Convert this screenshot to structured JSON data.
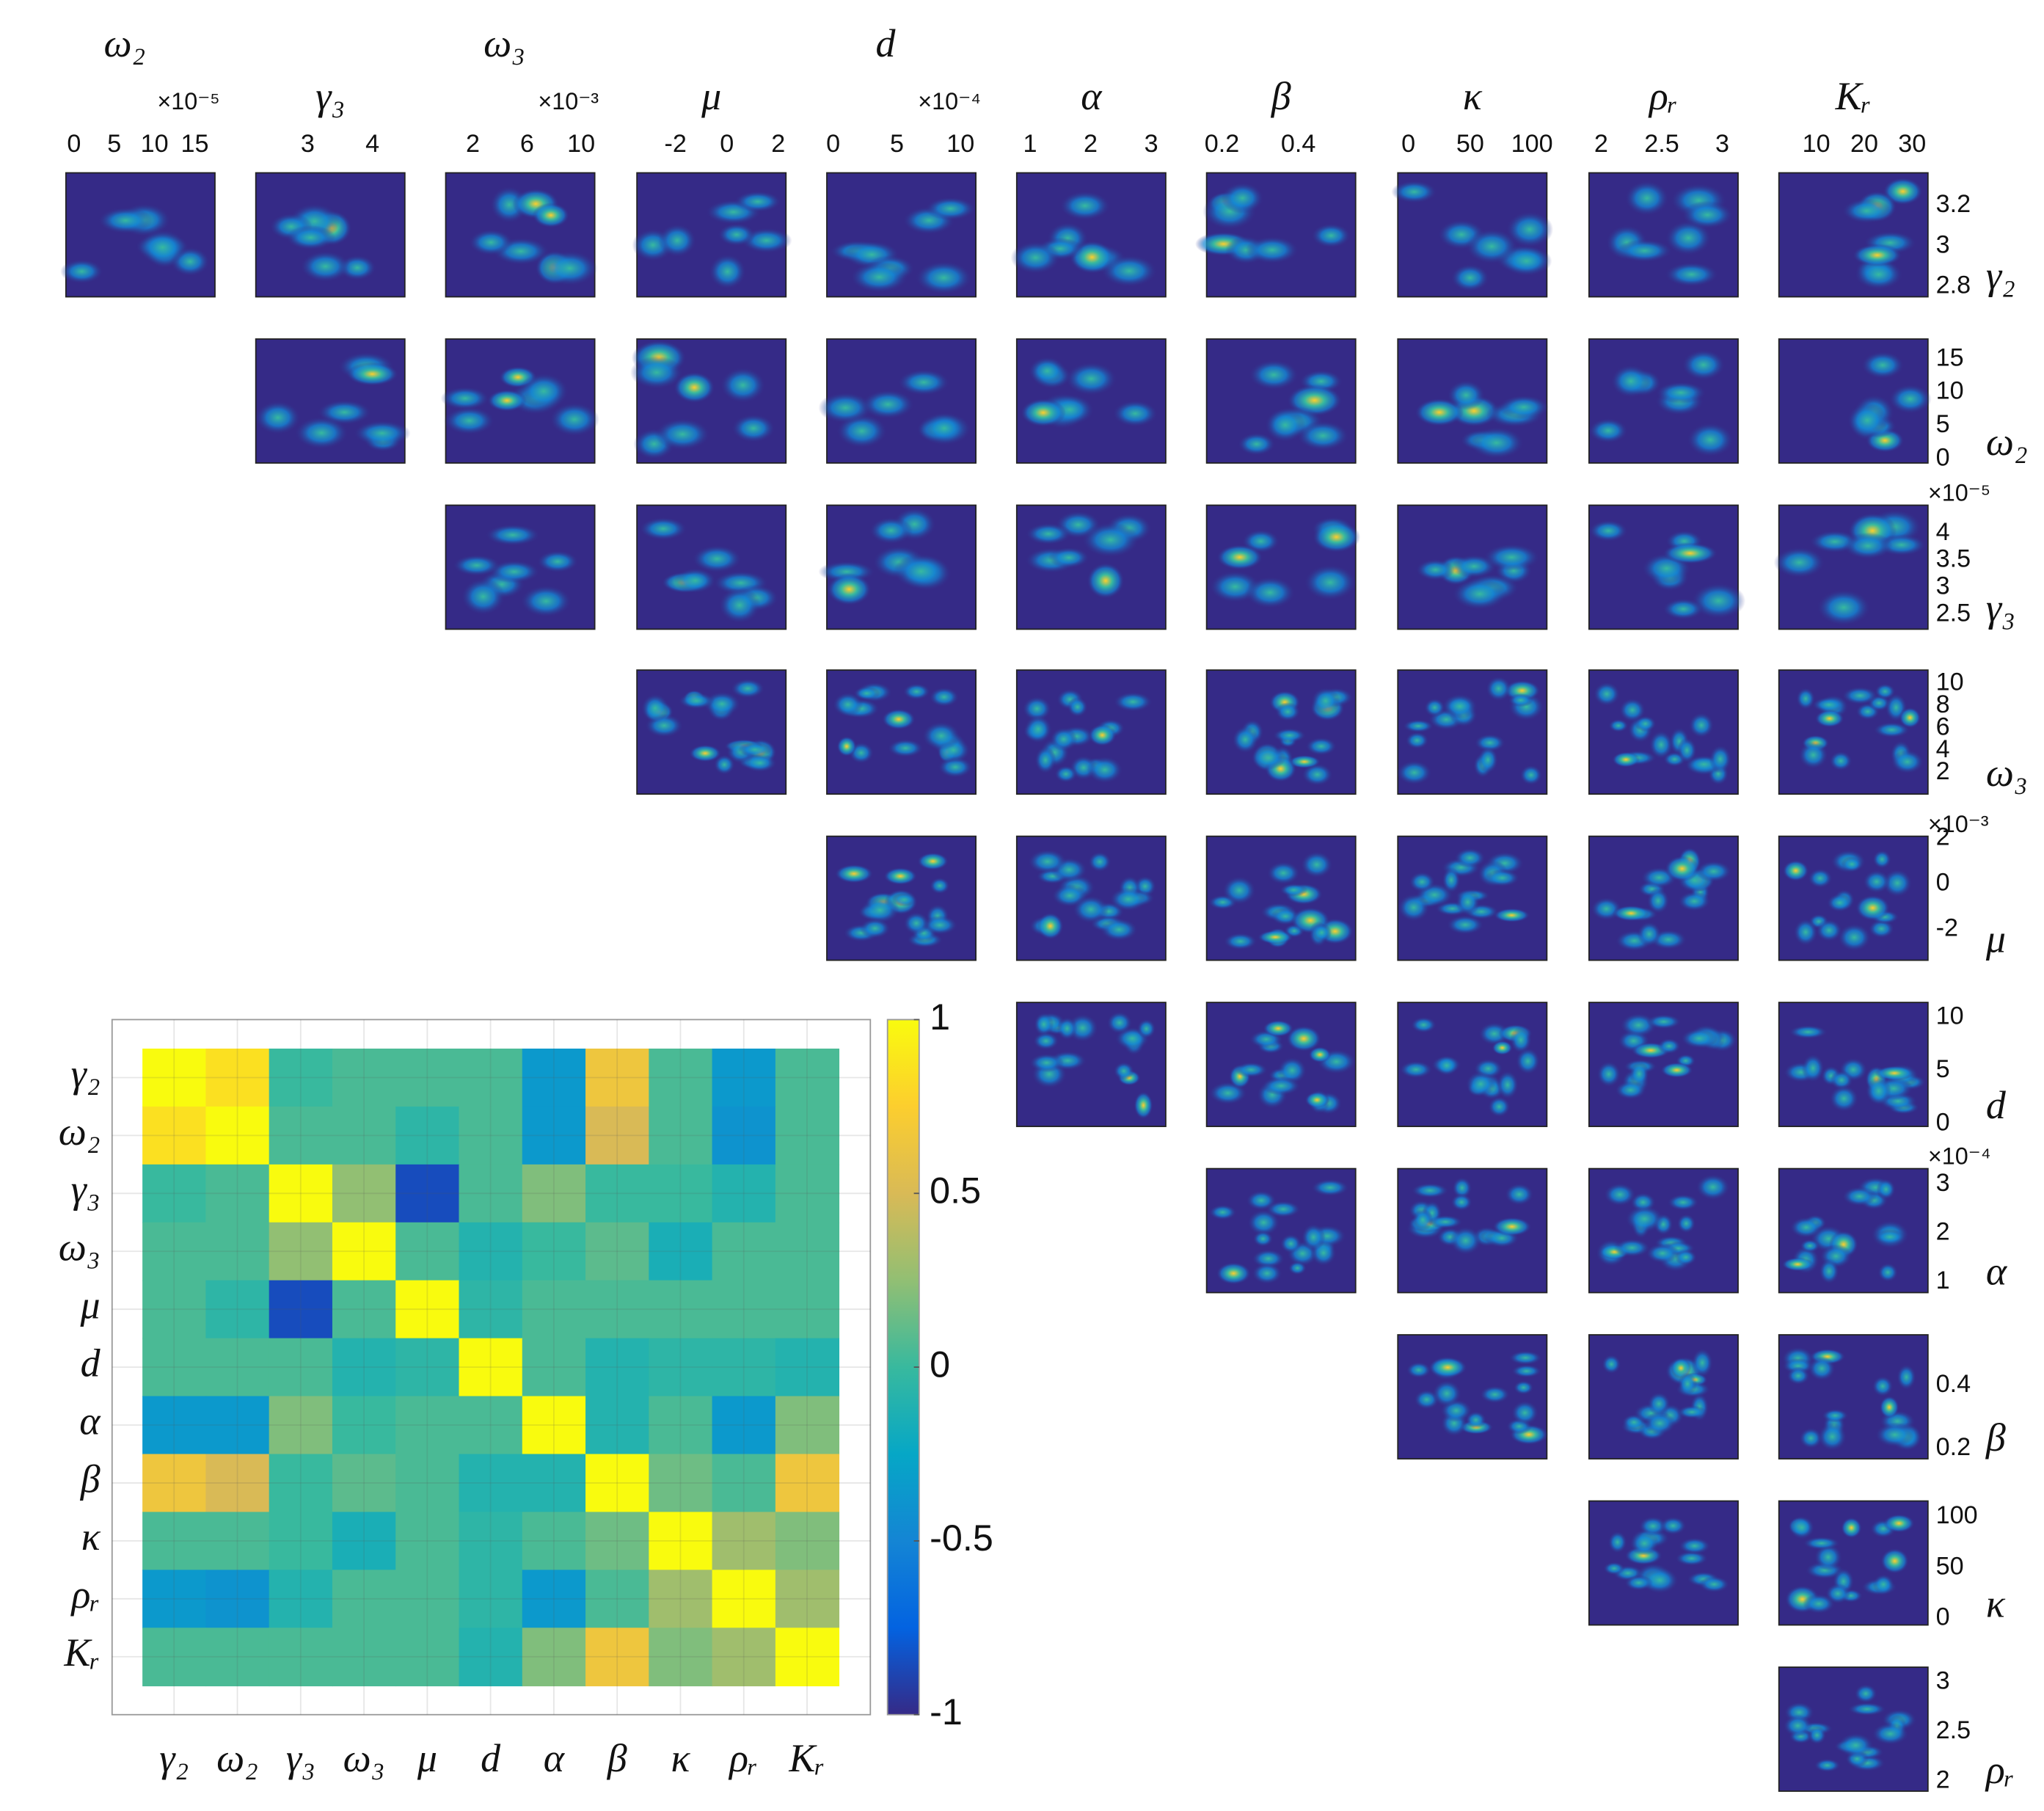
{
  "chart_data": [
    {
      "type": "density-grid",
      "columns": [
        {
          "label": "ω₂",
          "xlim": [
            -1,
            17.5
          ],
          "xticks": [
            0,
            5,
            10,
            15
          ],
          "exponent": "×10⁻⁵"
        },
        {
          "label": "γ₃",
          "xlim": [
            2.2,
            4.5
          ],
          "xticks": [
            3,
            4
          ]
        },
        {
          "label": "ω₃",
          "xlim": [
            0,
            11
          ],
          "xticks": [
            2,
            6,
            10
          ],
          "exponent": "×10⁻³"
        },
        {
          "label": "μ",
          "xlim": [
            -3.5,
            2.3
          ],
          "xticks": [
            -2,
            0,
            2
          ]
        },
        {
          "label": "d",
          "xlim": [
            -0.5,
            11.2
          ],
          "xticks": [
            0,
            5,
            10
          ],
          "exponent": "×10⁻⁴"
        },
        {
          "label": "α",
          "xlim": [
            0.78,
            3.24
          ],
          "xticks": [
            1,
            2,
            3
          ]
        },
        {
          "label": "β",
          "xlim": [
            0.16,
            0.55
          ],
          "xticks": [
            0.2,
            0.4
          ]
        },
        {
          "label": "κ",
          "xlim": [
            -8.5,
            112
          ],
          "xticks": [
            0,
            50,
            100
          ]
        },
        {
          "label": "ρᵣ",
          "xlim": [
            1.9,
            3.13
          ],
          "xticks": [
            2,
            2.5,
            3
          ]
        },
        {
          "label": "Kᵣ",
          "xlim": [
            2.2,
            33.3
          ],
          "xticks": [
            10,
            20,
            30
          ]
        }
      ],
      "rows": [
        {
          "label": "γ₂",
          "ylim": [
            2.75,
            3.36
          ],
          "yticks": [
            3.2,
            3,
            2.8
          ]
        },
        {
          "label": "ω₂",
          "ylim": [
            -0.6,
            18
          ],
          "yticks": [
            15,
            10,
            5,
            0
          ],
          "exponent": "×10⁻⁵"
        },
        {
          "label": "γ₃",
          "ylim": [
            2.23,
            4.52
          ],
          "yticks": [
            4,
            3.5,
            3,
            2.5
          ]
        },
        {
          "label": "ω₃",
          "ylim": [
            0.1,
            11.2
          ],
          "yticks": [
            10,
            8,
            6,
            4,
            2
          ],
          "exponent": "×10⁻³"
        },
        {
          "label": "μ",
          "ylim": [
            -3.35,
            2.1
          ],
          "yticks": [
            2,
            0,
            -2
          ]
        },
        {
          "label": "d",
          "ylim": [
            -0.25,
            11.4
          ],
          "yticks": [
            10,
            5,
            0
          ],
          "exponent": "×10⁻⁴"
        },
        {
          "label": "α",
          "ylim": [
            0.78,
            3.32
          ],
          "yticks": [
            3,
            2,
            1
          ]
        },
        {
          "label": "β",
          "ylim": [
            0.167,
            0.56
          ],
          "yticks": [
            0.4,
            0.2
          ]
        },
        {
          "label": "κ",
          "ylim": [
            -6.5,
            115.6
          ],
          "yticks": [
            100,
            50,
            0
          ]
        },
        {
          "label": "ρᵣ",
          "ylim": [
            1.9,
            3.15
          ],
          "yticks": [
            3,
            2.5,
            2
          ]
        }
      ]
    },
    {
      "type": "heatmap",
      "categories": [
        "γ₂",
        "ω₂",
        "γ₃",
        "ω₃",
        "μ",
        "d",
        "α",
        "β",
        "κ",
        "ρᵣ",
        "Kᵣ"
      ],
      "values": [
        [
          1,
          0.85,
          0,
          0.05,
          0.05,
          0.05,
          -0.35,
          0.65,
          0.05,
          -0.35,
          0.05
        ],
        [
          0.85,
          1,
          0.05,
          0.05,
          -0.05,
          0.05,
          -0.35,
          0.5,
          0.05,
          -0.4,
          0.05
        ],
        [
          0,
          0.05,
          1,
          0.25,
          -0.85,
          0.05,
          0.2,
          0,
          0,
          -0.1,
          0.05
        ],
        [
          0.05,
          0.05,
          0.25,
          1,
          0.05,
          -0.1,
          0,
          0.1,
          -0.15,
          0.05,
          0.05
        ],
        [
          0.05,
          -0.05,
          -0.85,
          0.05,
          1,
          -0.05,
          0.05,
          0.05,
          0.05,
          0.05,
          0.05
        ],
        [
          0.05,
          0.05,
          0.05,
          -0.1,
          -0.05,
          1,
          0.05,
          -0.1,
          -0.05,
          -0.05,
          -0.1
        ],
        [
          -0.35,
          -0.35,
          0.2,
          0,
          0.05,
          0.05,
          1,
          -0.1,
          0.05,
          -0.35,
          0.2
        ],
        [
          0.65,
          0.5,
          0,
          0.1,
          0.05,
          -0.1,
          -0.1,
          1,
          0.15,
          0.05,
          0.65
        ],
        [
          0.05,
          0.05,
          0,
          -0.15,
          0.05,
          -0.05,
          0.05,
          0.15,
          1,
          0.3,
          0.2
        ],
        [
          -0.35,
          -0.4,
          -0.1,
          0.05,
          0.05,
          -0.05,
          -0.35,
          0.05,
          0.3,
          1,
          0.3
        ],
        [
          0.05,
          0.05,
          0.05,
          0.05,
          0.05,
          -0.1,
          0.2,
          0.65,
          0.2,
          0.3,
          1
        ]
      ],
      "colorbar": {
        "lim": [
          -1,
          1
        ],
        "ticks": [
          -1,
          -0.5,
          0,
          0.5,
          1
        ]
      }
    }
  ]
}
